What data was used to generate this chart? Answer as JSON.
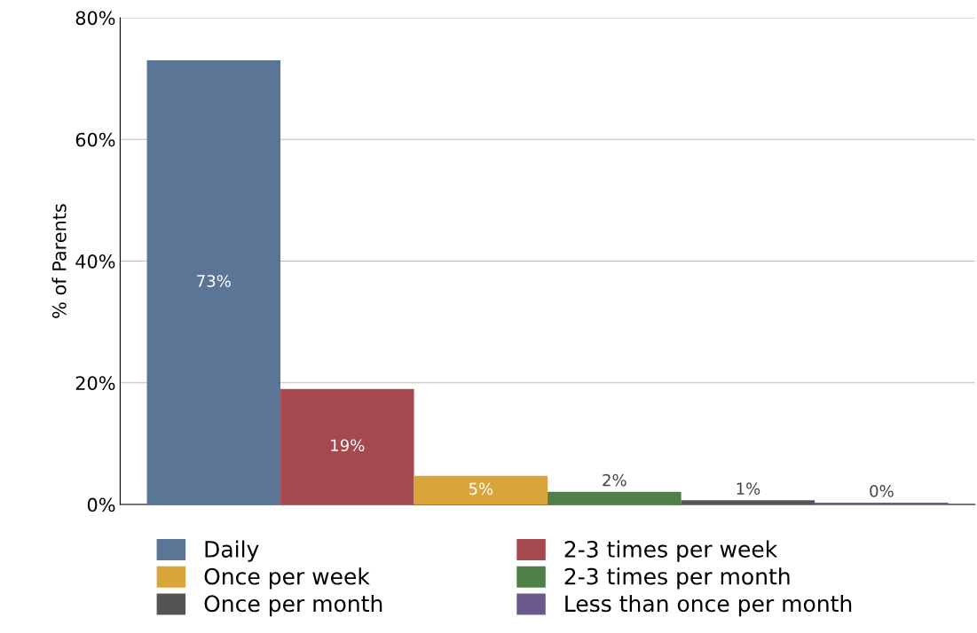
{
  "chart_data": {
    "type": "bar",
    "ylabel": "% of Parents",
    "categories": [
      null,
      null,
      null,
      null,
      null,
      null
    ],
    "series": [
      {
        "name": "Daily",
        "color": "#5a7596",
        "values": [
          73,
          null,
          null,
          null,
          null,
          null
        ],
        "value_labels": [
          "73%",
          null,
          null,
          null,
          null,
          null
        ]
      },
      {
        "name": "2-3 times per week",
        "color": "#a44a4e",
        "values": [
          null,
          19,
          null,
          null,
          null,
          null
        ],
        "value_labels": [
          null,
          "19%",
          null,
          null,
          null,
          null
        ]
      },
      {
        "name": "Once per week",
        "color": "#d9a53b",
        "values": [
          null,
          null,
          4.7,
          null,
          null,
          null
        ],
        "value_labels": [
          null,
          null,
          "5%",
          null,
          null,
          null
        ]
      },
      {
        "name": "2-3 times per month",
        "color": "#4f8048",
        "values": [
          null,
          null,
          null,
          2.1,
          null,
          null
        ],
        "value_labels": [
          null,
          null,
          null,
          "2%",
          null,
          null
        ]
      },
      {
        "name": "Once per month",
        "color": "#545454",
        "values": [
          null,
          null,
          null,
          null,
          0.7,
          null
        ],
        "value_labels": [
          null,
          null,
          null,
          null,
          "1%",
          null
        ]
      },
      {
        "name": "Less than once per month",
        "color": "#6a5a8c",
        "values": [
          null,
          null,
          null,
          null,
          null,
          0.3
        ],
        "value_labels": [
          null,
          null,
          null,
          null,
          null,
          "0%"
        ]
      }
    ],
    "ylim": [
      0,
      80
    ],
    "yticks": [
      {
        "value": 0,
        "label": "0%"
      },
      {
        "value": 20,
        "label": "20%"
      },
      {
        "value": 40,
        "label": "40%"
      },
      {
        "value": 60,
        "label": "60%"
      },
      {
        "value": 80,
        "label": "80%"
      }
    ],
    "grid": "y",
    "legend": "bottom"
  }
}
